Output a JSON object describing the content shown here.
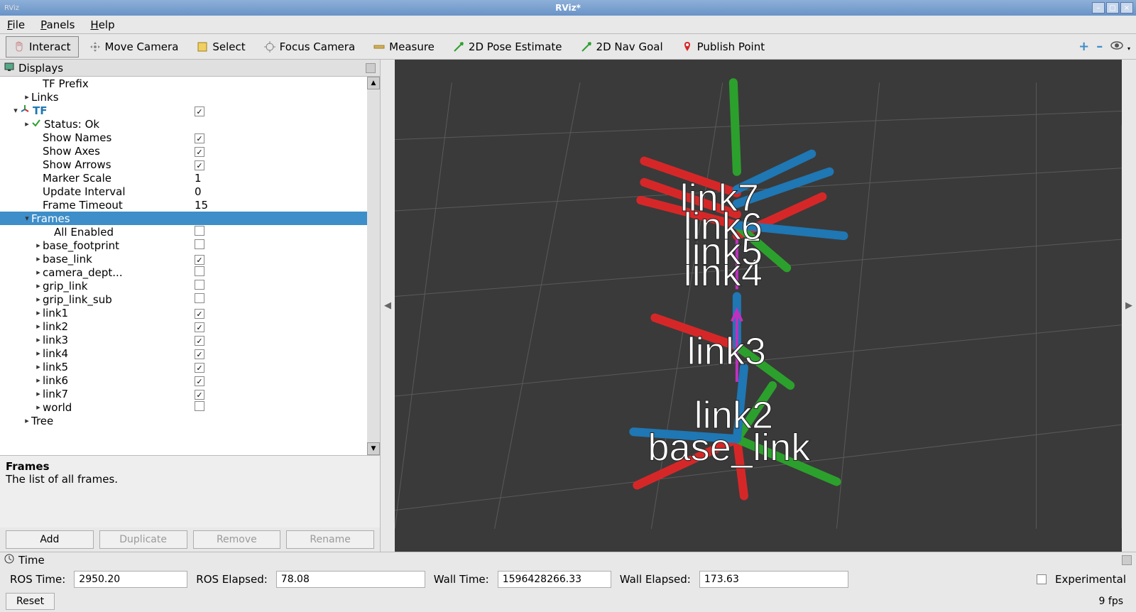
{
  "titlebar": {
    "app_small": "RViz",
    "title": "RViz*"
  },
  "menus": {
    "file": "File",
    "panels": "Panels",
    "help": "Help"
  },
  "toolbar": {
    "interact": "Interact",
    "move_camera": "Move Camera",
    "select": "Select",
    "focus_camera": "Focus Camera",
    "measure": "Measure",
    "pose_estimate": "2D Pose Estimate",
    "nav_goal": "2D Nav Goal",
    "publish_point": "Publish Point"
  },
  "displays": {
    "title": "Displays",
    "rows": {
      "tf_prefix": "TF Prefix",
      "links": "Links",
      "tf": "TF",
      "status_ok": "Status: Ok",
      "show_names": "Show Names",
      "show_axes": "Show Axes",
      "show_arrows": "Show Arrows",
      "marker_scale": "Marker Scale",
      "marker_scale_val": "1",
      "update_interval": "Update Interval",
      "update_interval_val": "0",
      "frame_timeout": "Frame Timeout",
      "frame_timeout_val": "15",
      "frames": "Frames",
      "all_enabled": "All Enabled",
      "base_footprint": "base_footprint",
      "base_link": "base_link",
      "camera_dept": "camera_dept...",
      "grip_link": "grip_link",
      "grip_link_sub": "grip_link_sub",
      "link1": "link1",
      "link2": "link2",
      "link3": "link3",
      "link4": "link4",
      "link5": "link5",
      "link6": "link6",
      "link7": "link7",
      "world": "world",
      "tree": "Tree"
    },
    "checks": {
      "tf": true,
      "show_names": true,
      "show_axes": true,
      "show_arrows": true,
      "all_enabled": false,
      "base_footprint": false,
      "base_link": true,
      "camera_dept": false,
      "grip_link": false,
      "grip_link_sub": false,
      "link1": true,
      "link2": true,
      "link3": true,
      "link4": true,
      "link5": true,
      "link6": true,
      "link7": true,
      "world": false
    },
    "desc_title": "Frames",
    "desc_body": "The list of all frames.",
    "buttons": {
      "add": "Add",
      "duplicate": "Duplicate",
      "remove": "Remove",
      "rename": "Rename"
    }
  },
  "view3d": {
    "bg_color": "#3a3a3a",
    "grid_color": "#5a5a5a",
    "axis_colors": {
      "x": "#d62728",
      "y": "#2ca02c",
      "z": "#1f77b4"
    },
    "labels": {
      "link7": "link7",
      "link6": "link6",
      "link5": "link5",
      "link4": "link4",
      "link3": "link3",
      "link2": "link2",
      "base_link": "base_link"
    }
  },
  "time": {
    "title": "Time",
    "ros_time_label": "ROS Time:",
    "ros_time": "2950.20",
    "ros_elapsed_label": "ROS Elapsed:",
    "ros_elapsed": "78.08",
    "wall_time_label": "Wall Time:",
    "wall_time": "1596428266.33",
    "wall_elapsed_label": "Wall Elapsed:",
    "wall_elapsed": "173.63",
    "experimental": "Experimental",
    "reset": "Reset",
    "fps": "9 fps"
  }
}
